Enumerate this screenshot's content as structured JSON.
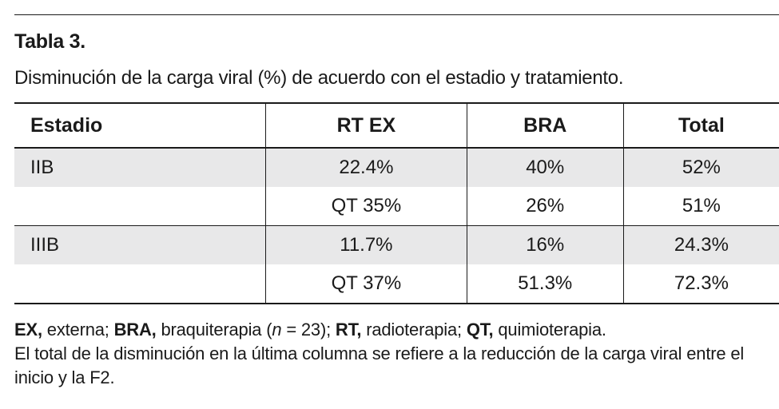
{
  "title": "Tabla 3.",
  "subtitle": "Disminución de la carga viral (%) de acuerdo con el estadio y tratamiento.",
  "table": {
    "headers": [
      "Estadio",
      "RT EX",
      "BRA",
      "Total"
    ],
    "rows": [
      [
        "IIB",
        "22.4%",
        "40%",
        "52%"
      ],
      [
        "",
        "QT 35%",
        "26%",
        "51%"
      ],
      [
        "IIIB",
        "11.7%",
        "16%",
        "24.3%"
      ],
      [
        "",
        "QT 37%",
        "51.3%",
        "72.3%"
      ]
    ]
  },
  "footnote": {
    "ex_abbr": "EX,",
    "ex_text": " externa; ",
    "bra_abbr": "BRA,",
    "bra_text": " braquiterapia (",
    "n_symbol": "n",
    "n_text": " = 23);  ",
    "rt_abbr": "RT,",
    "rt_text": " radioterapia; ",
    "qt_abbr": "QT,",
    "qt_text": " quimioterapia.",
    "note": "El total de la disminución en la última columna se refiere a la reducción de la carga viral entre el inicio y la F2."
  }
}
